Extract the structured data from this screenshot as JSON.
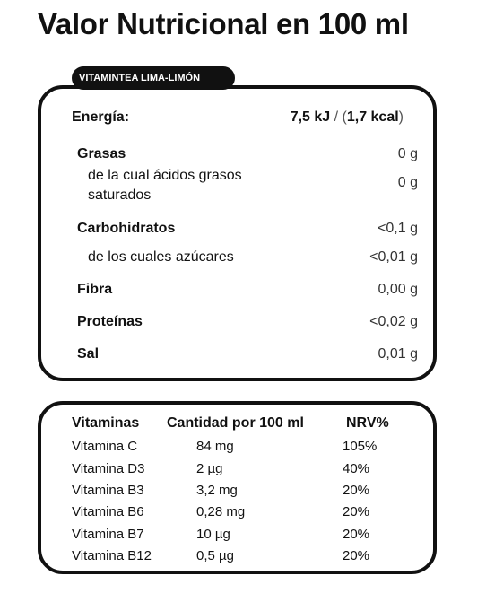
{
  "title": "Valor Nutricional en 100 ml",
  "product_tag": "VITAMINTEA LIMA-LIMÓN",
  "energy": {
    "label": "Energía:",
    "kj": "7,5 kJ",
    "sep": " / (",
    "kcal": "1,7 kcal",
    "close": ")"
  },
  "nutrients": [
    {
      "label": "Grasas",
      "value": "0 g"
    },
    {
      "label_line1": "de la cual ácidos grasos",
      "label_line2": "saturados",
      "value": "0 g"
    },
    {
      "label": "Carbohidratos",
      "value": "<0,1 g"
    },
    {
      "label": "de los cuales azúcares",
      "value": "<0,01 g"
    },
    {
      "label": "Fibra",
      "value": "0,00 g"
    },
    {
      "label": "Proteínas",
      "value": "<0,02 g"
    },
    {
      "label": "Sal",
      "value": "0,01 g"
    }
  ],
  "vitamins": {
    "headers": [
      "Vitaminas",
      "Cantidad por 100 ml",
      "NRV%"
    ],
    "rows": [
      [
        "Vitamina C",
        "84 mg",
        "105%"
      ],
      [
        "Vitamina D3",
        "2 µg",
        "40%"
      ],
      [
        "Vitamina B3",
        "3,2 mg",
        "20%"
      ],
      [
        "Vitamina B6",
        "0,28 mg",
        "20%"
      ],
      [
        "Vitamina B7",
        "10 µg",
        "20%"
      ],
      [
        "Vitamina B12",
        "0,5 µg",
        "20%"
      ]
    ]
  }
}
